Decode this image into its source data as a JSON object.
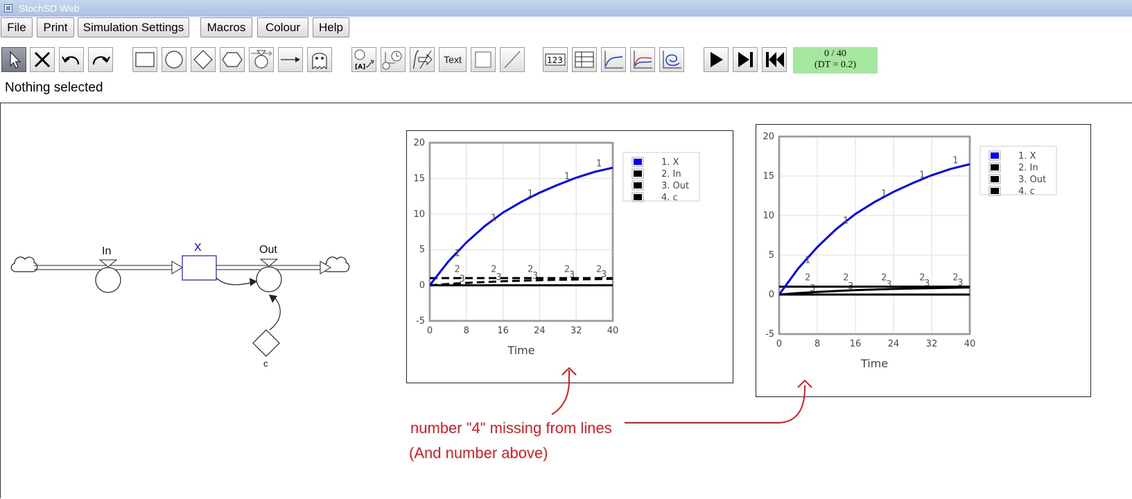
{
  "window": {
    "title": "StochSD Web"
  },
  "menu": [
    {
      "label": "File"
    },
    {
      "label": "Print"
    },
    {
      "label": "Simulation Settings"
    },
    {
      "label": "Macros"
    },
    {
      "label": "Colour"
    },
    {
      "label": "Help"
    }
  ],
  "toolbar": {
    "text_tool_label": "Text",
    "number_tool_label": "123",
    "time_display": {
      "progress": "0 / 40",
      "dt": "(DT = 0.2)"
    }
  },
  "status": "Nothing selected",
  "model": {
    "stock": {
      "label": "X",
      "color": "#0000ff"
    },
    "flows": [
      {
        "label": "In"
      },
      {
        "label": "Out"
      }
    ],
    "auxiliary": {
      "label": "c"
    }
  },
  "plots": [
    {
      "xlabel": "Time",
      "legend": [
        {
          "label": "1. X",
          "color": "#0000ff"
        },
        {
          "label": "2. In",
          "color": "#000000"
        },
        {
          "label": "3. Out",
          "color": "#000000"
        },
        {
          "label": "4. c",
          "color": "#000000"
        }
      ]
    },
    {
      "xlabel": "Time",
      "legend": [
        {
          "label": "1. X",
          "color": "#0000ff"
        },
        {
          "label": "2. In",
          "color": "#000000"
        },
        {
          "label": "3. Out",
          "color": "#000000"
        },
        {
          "label": "4. c",
          "color": "#000000"
        }
      ]
    }
  ],
  "annotation": {
    "line1": "number \"4\" missing from lines",
    "line2": "(And number above)",
    "color": "#e8151b"
  },
  "chart_data": [
    {
      "type": "line",
      "xlabel": "Time",
      "xlim": [
        0,
        40
      ],
      "ylim": [
        -5,
        20
      ],
      "x_ticks": [
        0,
        8,
        16,
        24,
        32,
        40
      ],
      "y_ticks": [
        -5,
        0,
        5,
        10,
        15,
        20
      ],
      "grid": true,
      "legend_position": "right",
      "x": [
        0,
        4,
        8,
        12,
        16,
        20,
        24,
        28,
        32,
        36,
        40
      ],
      "series": [
        {
          "name": "1. X",
          "color": "#0000ff",
          "style": "solid",
          "values": [
            0,
            3.3,
            6.0,
            8.3,
            10.2,
            11.7,
            13.0,
            14.1,
            15.1,
            15.9,
            16.5
          ]
        },
        {
          "name": "2. In",
          "color": "#000000",
          "style": "dashed",
          "values": [
            1,
            1,
            1,
            1,
            1,
            1,
            1,
            1,
            1,
            1,
            1
          ]
        },
        {
          "name": "3. Out",
          "color": "#000000",
          "style": "dashed",
          "values": [
            0,
            0.18,
            0.33,
            0.45,
            0.56,
            0.64,
            0.71,
            0.77,
            0.82,
            0.86,
            0.9
          ]
        },
        {
          "name": "4. c",
          "color": "#000000",
          "style": "solid",
          "values": [
            0,
            0,
            0,
            0,
            0,
            0,
            0,
            0,
            0,
            0,
            0
          ]
        }
      ]
    },
    {
      "type": "line",
      "xlabel": "Time",
      "xlim": [
        0,
        40
      ],
      "ylim": [
        -5,
        20
      ],
      "x_ticks": [
        0,
        8,
        16,
        24,
        32,
        40
      ],
      "y_ticks": [
        -5,
        0,
        5,
        10,
        15,
        20
      ],
      "grid": true,
      "legend_position": "right",
      "x": [
        0,
        4,
        8,
        12,
        16,
        20,
        24,
        28,
        32,
        36,
        40
      ],
      "series": [
        {
          "name": "1. X",
          "color": "#0000ff",
          "style": "solid",
          "values": [
            0,
            3.3,
            6.0,
            8.3,
            10.2,
            11.7,
            13.0,
            14.1,
            15.1,
            15.9,
            16.5
          ]
        },
        {
          "name": "2. In",
          "color": "#000000",
          "style": "solid",
          "values": [
            1,
            1,
            1,
            1,
            1,
            1,
            1,
            1,
            1,
            1,
            1
          ]
        },
        {
          "name": "3. Out",
          "color": "#000000",
          "style": "solid",
          "values": [
            0,
            0.18,
            0.33,
            0.45,
            0.56,
            0.64,
            0.71,
            0.77,
            0.82,
            0.86,
            0.9
          ]
        },
        {
          "name": "4. c",
          "color": "#000000",
          "style": "solid",
          "values": [
            0,
            0,
            0,
            0,
            0,
            0,
            0,
            0,
            0,
            0,
            0
          ]
        }
      ]
    }
  ]
}
